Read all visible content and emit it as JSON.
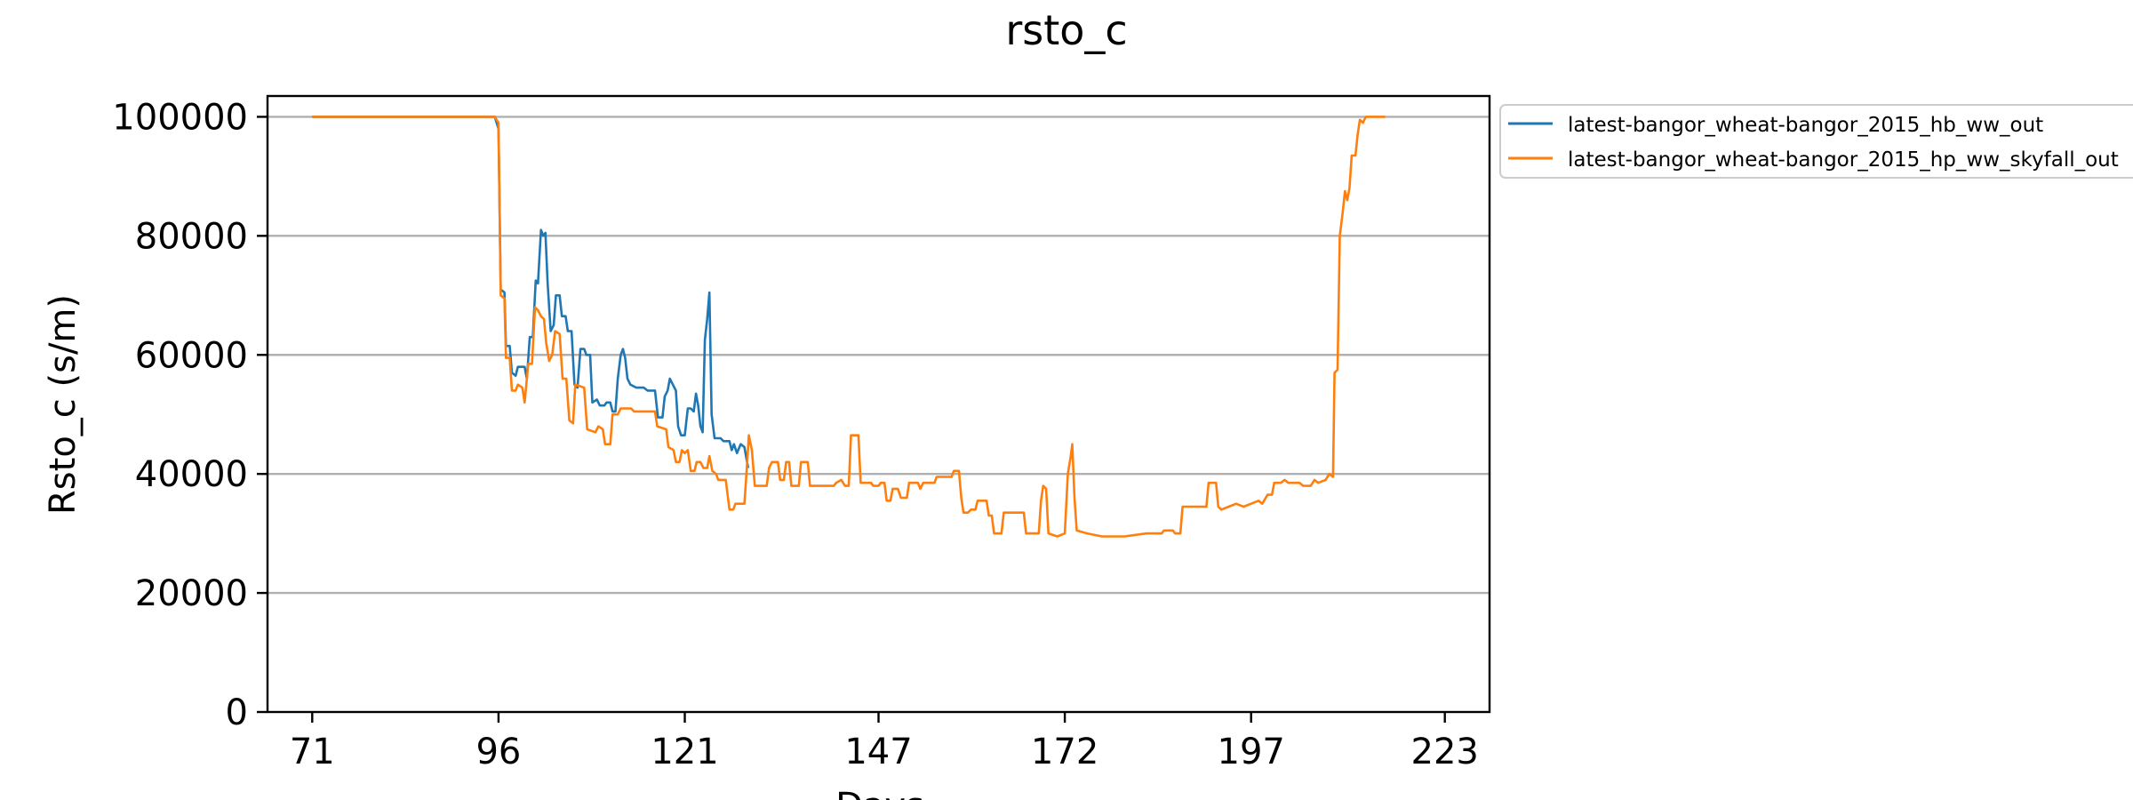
{
  "chart_data": {
    "type": "line",
    "title": "rsto_c",
    "xlabel": "Days",
    "ylabel": "Rsto_c (s/m)",
    "xlim": [
      65,
      229
    ],
    "ylim": [
      0,
      103500
    ],
    "xticks": [
      71,
      96,
      121,
      147,
      172,
      197,
      223
    ],
    "yticks": [
      0,
      20000,
      40000,
      60000,
      80000,
      100000
    ],
    "grid": "horizontal",
    "legend_position": "outside-top-right",
    "series": [
      {
        "name": "latest-bangor_wheat-bangor_2015_hb_ww_out",
        "color": "#1f77b4",
        "points": [
          [
            71,
            100000
          ],
          [
            95.5,
            100000
          ],
          [
            96,
            98000
          ],
          [
            96.3,
            71000
          ],
          [
            96.8,
            70500
          ],
          [
            97,
            61500
          ],
          [
            97.5,
            61500
          ],
          [
            97.8,
            57000
          ],
          [
            98.3,
            56500
          ],
          [
            98.6,
            58000
          ],
          [
            99.5,
            58000
          ],
          [
            99.8,
            56000
          ],
          [
            100.2,
            63000
          ],
          [
            100.6,
            63000
          ],
          [
            101,
            72500
          ],
          [
            101.3,
            72000
          ],
          [
            101.7,
            81000
          ],
          [
            102,
            80000
          ],
          [
            102.3,
            80500
          ],
          [
            102.6,
            72000
          ],
          [
            103,
            64000
          ],
          [
            103.4,
            65000
          ],
          [
            103.7,
            70000
          ],
          [
            104.2,
            70000
          ],
          [
            104.5,
            66500
          ],
          [
            105,
            66500
          ],
          [
            105.3,
            64000
          ],
          [
            105.8,
            64000
          ],
          [
            106.2,
            55000
          ],
          [
            106.6,
            54500
          ],
          [
            107,
            61000
          ],
          [
            107.5,
            61000
          ],
          [
            107.8,
            60000
          ],
          [
            108.3,
            60000
          ],
          [
            108.6,
            52000
          ],
          [
            109.2,
            52500
          ],
          [
            109.6,
            51500
          ],
          [
            110.2,
            51500
          ],
          [
            110.5,
            52000
          ],
          [
            111,
            52000
          ],
          [
            111.3,
            50500
          ],
          [
            111.7,
            50500
          ],
          [
            112,
            56000
          ],
          [
            112.4,
            60000
          ],
          [
            112.7,
            61000
          ],
          [
            113,
            59500
          ],
          [
            113.3,
            56000
          ],
          [
            113.7,
            55000
          ],
          [
            114.5,
            54500
          ],
          [
            115.5,
            54500
          ],
          [
            116,
            54000
          ],
          [
            117,
            54000
          ],
          [
            117.4,
            49500
          ],
          [
            118,
            49500
          ],
          [
            118.3,
            53000
          ],
          [
            118.7,
            54000
          ],
          [
            119,
            56000
          ],
          [
            119.4,
            55000
          ],
          [
            119.8,
            54000
          ],
          [
            120.1,
            48000
          ],
          [
            120.5,
            46500
          ],
          [
            121,
            46500
          ],
          [
            121.4,
            51000
          ],
          [
            121.8,
            51000
          ],
          [
            122.2,
            50500
          ],
          [
            122.5,
            53500
          ],
          [
            122.8,
            51500
          ],
          [
            123.1,
            48000
          ],
          [
            123.4,
            47000
          ],
          [
            123.7,
            62500
          ],
          [
            124,
            66000
          ],
          [
            124.3,
            70500
          ],
          [
            124.6,
            50000
          ],
          [
            125,
            46000
          ],
          [
            125.8,
            46000
          ],
          [
            126.2,
            45500
          ],
          [
            127,
            45500
          ],
          [
            127.3,
            44000
          ],
          [
            127.6,
            45000
          ],
          [
            128,
            43500
          ],
          [
            128.5,
            45000
          ],
          [
            129,
            44500
          ],
          [
            129.5,
            41000
          ]
        ]
      },
      {
        "name": "latest-bangor_wheat-bangor_2015_hp_ww_skyfall_out",
        "color": "#ff7f0e",
        "points": [
          [
            71,
            100000
          ],
          [
            95.5,
            100000
          ],
          [
            96,
            99000
          ],
          [
            96.3,
            70000
          ],
          [
            96.8,
            69500
          ],
          [
            97,
            59500
          ],
          [
            97.5,
            59500
          ],
          [
            97.8,
            54000
          ],
          [
            98.3,
            54000
          ],
          [
            98.6,
            55000
          ],
          [
            99.2,
            54500
          ],
          [
            99.5,
            52000
          ],
          [
            100,
            58500
          ],
          [
            100.5,
            58500
          ],
          [
            100.9,
            68000
          ],
          [
            101.3,
            67500
          ],
          [
            101.7,
            66500
          ],
          [
            102.1,
            66000
          ],
          [
            102.4,
            62000
          ],
          [
            102.8,
            59000
          ],
          [
            103.2,
            60000
          ],
          [
            103.6,
            64000
          ],
          [
            104.2,
            63500
          ],
          [
            104.6,
            56000
          ],
          [
            105.1,
            56000
          ],
          [
            105.5,
            49000
          ],
          [
            106,
            48500
          ],
          [
            106.3,
            55000
          ],
          [
            107.5,
            54500
          ],
          [
            107.9,
            47500
          ],
          [
            109,
            47000
          ],
          [
            109.4,
            48000
          ],
          [
            110,
            47500
          ],
          [
            110.3,
            45000
          ],
          [
            111,
            45000
          ],
          [
            111.3,
            50000
          ],
          [
            112,
            50000
          ],
          [
            112.4,
            51000
          ],
          [
            113.8,
            51000
          ],
          [
            114.2,
            50500
          ],
          [
            117,
            50500
          ],
          [
            117.3,
            48000
          ],
          [
            118.5,
            47500
          ],
          [
            118.8,
            44500
          ],
          [
            119.5,
            44000
          ],
          [
            119.8,
            42000
          ],
          [
            120.3,
            42000
          ],
          [
            120.6,
            44000
          ],
          [
            121,
            43500
          ],
          [
            121.4,
            44000
          ],
          [
            121.8,
            40500
          ],
          [
            122.3,
            40500
          ],
          [
            122.6,
            42000
          ],
          [
            123.1,
            42000
          ],
          [
            123.5,
            41000
          ],
          [
            124,
            41000
          ],
          [
            124.3,
            43000
          ],
          [
            124.7,
            40500
          ],
          [
            125.2,
            40000
          ],
          [
            125.5,
            39000
          ],
          [
            126.5,
            39000
          ],
          [
            127,
            34000
          ],
          [
            127.5,
            34000
          ],
          [
            127.8,
            35000
          ],
          [
            129,
            35000
          ],
          [
            129.3,
            40500
          ],
          [
            129.6,
            46500
          ],
          [
            130,
            44000
          ],
          [
            130.4,
            38000
          ],
          [
            132,
            38000
          ],
          [
            132.3,
            41000
          ],
          [
            132.7,
            42000
          ],
          [
            133.5,
            42000
          ],
          [
            133.8,
            39000
          ],
          [
            134.3,
            39000
          ],
          [
            134.6,
            42000
          ],
          [
            135,
            42000
          ],
          [
            135.3,
            38000
          ],
          [
            136.3,
            38000
          ],
          [
            136.6,
            42000
          ],
          [
            137.5,
            42000
          ],
          [
            137.8,
            38000
          ],
          [
            141,
            38000
          ],
          [
            141.3,
            38500
          ],
          [
            142,
            39000
          ],
          [
            142.5,
            38000
          ],
          [
            143,
            38000
          ],
          [
            143.3,
            46500
          ],
          [
            144.3,
            46500
          ],
          [
            144.6,
            38500
          ],
          [
            146,
            38500
          ],
          [
            146.3,
            38000
          ],
          [
            147,
            38000
          ],
          [
            147.3,
            38500
          ],
          [
            147.8,
            38500
          ],
          [
            148.1,
            35500
          ],
          [
            148.6,
            35500
          ],
          [
            148.9,
            37500
          ],
          [
            149.6,
            37500
          ],
          [
            150,
            36000
          ],
          [
            150.8,
            36000
          ],
          [
            151.1,
            38500
          ],
          [
            152.3,
            38500
          ],
          [
            152.6,
            37500
          ],
          [
            153,
            38500
          ],
          [
            154.5,
            38500
          ],
          [
            154.8,
            39500
          ],
          [
            156.8,
            39500
          ],
          [
            157.1,
            40500
          ],
          [
            157.8,
            40500
          ],
          [
            158.1,
            36000
          ],
          [
            158.4,
            33500
          ],
          [
            159,
            33500
          ],
          [
            159.4,
            34000
          ],
          [
            160,
            34000
          ],
          [
            160.3,
            35500
          ],
          [
            161.5,
            35500
          ],
          [
            161.8,
            33000
          ],
          [
            162.2,
            33000
          ],
          [
            162.5,
            30000
          ],
          [
            163.5,
            30000
          ],
          [
            163.8,
            33500
          ],
          [
            166.5,
            33500
          ],
          [
            166.8,
            30000
          ],
          [
            168.5,
            30000
          ],
          [
            168.8,
            35500
          ],
          [
            169.1,
            38000
          ],
          [
            169.5,
            37500
          ],
          [
            169.8,
            30000
          ],
          [
            171,
            29500
          ],
          [
            172,
            30000
          ],
          [
            172.4,
            40000
          ],
          [
            172.8,
            43000
          ],
          [
            173,
            45000
          ],
          [
            173.3,
            36000
          ],
          [
            173.6,
            30500
          ],
          [
            175,
            30000
          ],
          [
            177,
            29500
          ],
          [
            180,
            29500
          ],
          [
            183,
            30000
          ],
          [
            185,
            30000
          ],
          [
            185.3,
            30500
          ],
          [
            186.5,
            30500
          ],
          [
            186.8,
            30000
          ],
          [
            187.5,
            30000
          ],
          [
            187.8,
            34500
          ],
          [
            189,
            34500
          ],
          [
            189.5,
            34500
          ],
          [
            191,
            34500
          ],
          [
            191.3,
            38500
          ],
          [
            192.3,
            38500
          ],
          [
            192.6,
            34500
          ],
          [
            193,
            34000
          ],
          [
            194,
            34500
          ],
          [
            195,
            35000
          ],
          [
            196,
            34500
          ],
          [
            197,
            35000
          ],
          [
            198,
            35500
          ],
          [
            198.5,
            35000
          ],
          [
            199.2,
            36500
          ],
          [
            199.8,
            36500
          ],
          [
            200.1,
            38500
          ],
          [
            201,
            38500
          ],
          [
            201.5,
            39000
          ],
          [
            202,
            38500
          ],
          [
            203.5,
            38500
          ],
          [
            204,
            38000
          ],
          [
            205,
            38000
          ],
          [
            205.5,
            39000
          ],
          [
            206,
            38500
          ],
          [
            207,
            39000
          ],
          [
            207.5,
            40000
          ],
          [
            208,
            39500
          ],
          [
            208.2,
            57000
          ],
          [
            208.6,
            57500
          ],
          [
            208.9,
            80000
          ],
          [
            209.3,
            84000
          ],
          [
            209.6,
            87500
          ],
          [
            209.9,
            86000
          ],
          [
            210.2,
            88000
          ],
          [
            210.5,
            93500
          ],
          [
            211,
            93500
          ],
          [
            211.3,
            97000
          ],
          [
            211.6,
            99500
          ],
          [
            212,
            99000
          ],
          [
            212.4,
            100000
          ],
          [
            215,
            100000
          ]
        ]
      }
    ]
  }
}
